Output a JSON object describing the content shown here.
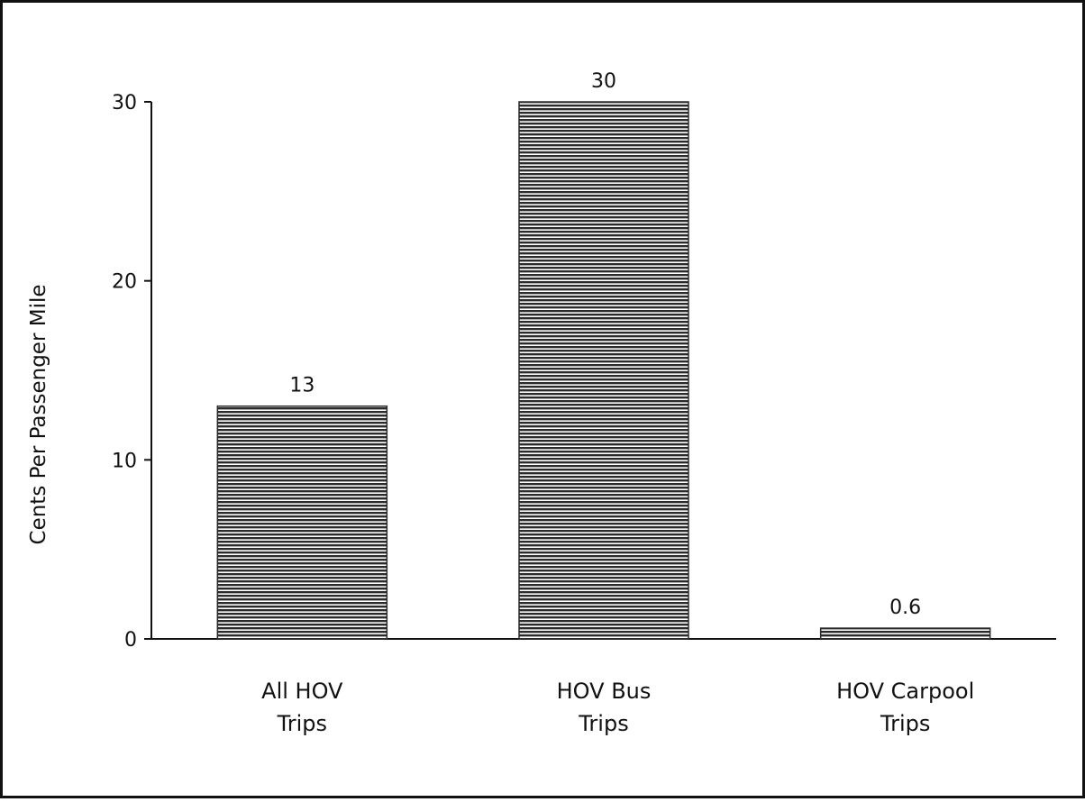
{
  "chart_data": {
    "type": "bar",
    "title": "",
    "xlabel": "",
    "ylabel": "Cents Per Passenger Mile",
    "ylim": [
      0,
      30
    ],
    "yticks": [
      0,
      10,
      20,
      30
    ],
    "grid": false,
    "legend": "none",
    "categories": [
      [
        "All HOV",
        "Trips"
      ],
      [
        "HOV Bus",
        "Trips"
      ],
      [
        "HOV Carpool",
        "Trips"
      ]
    ],
    "values": [
      13,
      30,
      0.6
    ],
    "value_labels": [
      "13",
      "30",
      "0.6"
    ],
    "bar_fill": "horizontal-hatch",
    "colors": {
      "bar_line": "#2b2b2b",
      "bar_gap": "#ffffff",
      "axis": "#111111",
      "frame": "#111111"
    }
  }
}
